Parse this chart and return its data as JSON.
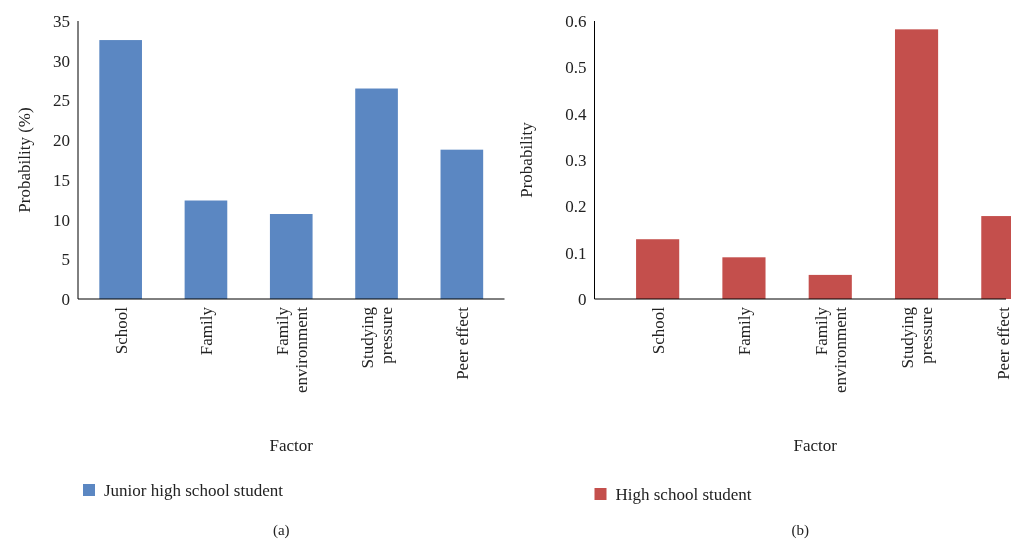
{
  "chart_data": [
    {
      "type": "bar",
      "xlabel": "Factor",
      "ylabel": "Probability (%)",
      "categories": [
        "School",
        "Family",
        "Family environment",
        "Studying pressure",
        "Peer effect"
      ],
      "series": [
        {
          "name": "Junior high school student",
          "color": "#5b87c2",
          "values": [
            32.6,
            12.4,
            10.7,
            26.5,
            18.8
          ]
        }
      ],
      "ylim": [
        0,
        35
      ],
      "yticks": [
        0,
        5,
        10,
        15,
        20,
        25,
        30,
        35
      ],
      "grid": false,
      "legend": "bottom",
      "annotations": [
        "(a)"
      ]
    },
    {
      "type": "bar",
      "xlabel": "Factor",
      "ylabel": "Probability",
      "categories": [
        "School",
        "Family",
        "Family environment",
        "Studying pressure",
        "Peer effect"
      ],
      "series": [
        {
          "name": "High school student",
          "color": "#c44f4c",
          "values": [
            0.129,
            0.09,
            0.052,
            0.582,
            0.179
          ]
        }
      ],
      "ylim": [
        0,
        0.6
      ],
      "yticks": [
        0,
        0.1,
        0.2,
        0.3,
        0.4,
        0.5,
        0.6
      ],
      "grid": false,
      "legend": "bottom",
      "annotations": [
        "(b)"
      ]
    }
  ]
}
